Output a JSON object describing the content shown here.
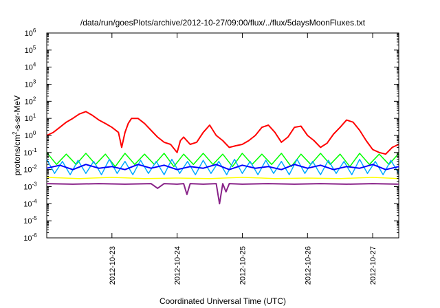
{
  "chart_data": {
    "type": "line",
    "title": "/data/run/goesPlots/archive/2012-10-27/09:00/flux/../flux/5daysMoonFluxes.txt",
    "xlabel": "Coordinated Universal Time (UTC)",
    "ylabel_parts": {
      "base": "protons/cm",
      "sup": "2",
      "rest": "-s-sr-MeV"
    },
    "y_scale": "log",
    "ylim_exp": [
      -6,
      6
    ],
    "y_tick_base": "10",
    "y_tick_exponents": [
      "6",
      "5",
      "4",
      "3",
      "2",
      "1",
      "0",
      "-1",
      "-2",
      "-3",
      "-4",
      "-5",
      "-6"
    ],
    "x_range_days": [
      0,
      5.4
    ],
    "x_ticks": [
      {
        "label": "2012-10-23",
        "day": 1.0
      },
      {
        "label": "2012-10-24",
        "day": 2.0
      },
      {
        "label": "2012-10-25",
        "day": 3.0
      },
      {
        "label": "2012-10-26",
        "day": 4.0
      },
      {
        "label": "2012-10-27",
        "day": 5.0
      }
    ],
    "grid": false,
    "series": [
      {
        "color": "#ff0000",
        "width": 2,
        "x": [
          0.0,
          0.1,
          0.2,
          0.3,
          0.4,
          0.5,
          0.6,
          0.7,
          0.8,
          0.9,
          1.0,
          1.1,
          1.15,
          1.2,
          1.25,
          1.3,
          1.4,
          1.5,
          1.6,
          1.7,
          1.8,
          1.9,
          2.0,
          2.05,
          2.1,
          2.2,
          2.3,
          2.4,
          2.5,
          2.6,
          2.7,
          2.8,
          2.9,
          3.0,
          3.1,
          3.2,
          3.3,
          3.4,
          3.5,
          3.6,
          3.7,
          3.8,
          3.9,
          4.0,
          4.1,
          4.2,
          4.3,
          4.4,
          4.5,
          4.6,
          4.7,
          4.8,
          4.9,
          5.0,
          5.1,
          5.2,
          5.3,
          5.4
        ],
        "y": [
          1.0,
          1.5,
          3,
          6,
          10,
          18,
          25,
          15,
          8,
          5,
          3,
          1.5,
          0.2,
          1.5,
          5,
          10,
          10,
          5,
          2,
          0.8,
          0.4,
          0.3,
          0.1,
          0.5,
          0.8,
          0.3,
          0.4,
          1.5,
          4,
          1.0,
          0.5,
          0.2,
          0.25,
          0.3,
          0.5,
          1,
          3,
          4,
          1.5,
          0.4,
          0.8,
          3,
          3.5,
          1.0,
          0.5,
          0.2,
          0.35,
          1.2,
          3,
          8,
          6,
          2,
          0.5,
          0.15,
          0.1,
          0.08,
          0.2,
          0.3
        ]
      },
      {
        "color": "#00ff00",
        "width": 1.5,
        "x": [
          0.0,
          0.15,
          0.3,
          0.45,
          0.6,
          0.75,
          0.9,
          1.05,
          1.2,
          1.35,
          1.5,
          1.65,
          1.8,
          1.95,
          2.1,
          2.25,
          2.4,
          2.55,
          2.7,
          2.85,
          3.0,
          3.15,
          3.3,
          3.45,
          3.6,
          3.75,
          3.9,
          4.05,
          4.2,
          4.35,
          4.5,
          4.65,
          4.8,
          4.95,
          5.1,
          5.25,
          5.4
        ],
        "y": [
          0.1,
          0.02,
          0.08,
          0.02,
          0.09,
          0.02,
          0.08,
          0.015,
          0.09,
          0.02,
          0.08,
          0.02,
          0.09,
          0.015,
          0.08,
          0.02,
          0.09,
          0.02,
          0.08,
          0.015,
          0.09,
          0.02,
          0.08,
          0.02,
          0.09,
          0.015,
          0.08,
          0.02,
          0.09,
          0.02,
          0.08,
          0.015,
          0.09,
          0.02,
          0.08,
          0.02,
          0.09
        ]
      },
      {
        "color": "#00aaff",
        "width": 1.5,
        "x": [
          0.0,
          0.12,
          0.24,
          0.36,
          0.48,
          0.6,
          0.72,
          0.84,
          0.96,
          1.08,
          1.2,
          1.32,
          1.44,
          1.56,
          1.68,
          1.8,
          1.92,
          2.04,
          2.16,
          2.28,
          2.4,
          2.52,
          2.64,
          2.76,
          2.88,
          3.0,
          3.12,
          3.24,
          3.36,
          3.48,
          3.6,
          3.72,
          3.84,
          3.96,
          4.08,
          4.2,
          4.32,
          4.44,
          4.56,
          4.68,
          4.8,
          4.92,
          5.04,
          5.16,
          5.28,
          5.4
        ],
        "y": [
          0.04,
          0.006,
          0.03,
          0.005,
          0.035,
          0.006,
          0.03,
          0.005,
          0.04,
          0.006,
          0.03,
          0.005,
          0.035,
          0.006,
          0.03,
          0.005,
          0.04,
          0.006,
          0.03,
          0.005,
          0.035,
          0.006,
          0.03,
          0.005,
          0.04,
          0.006,
          0.03,
          0.005,
          0.035,
          0.006,
          0.03,
          0.005,
          0.04,
          0.006,
          0.03,
          0.005,
          0.035,
          0.006,
          0.03,
          0.005,
          0.04,
          0.006,
          0.03,
          0.005,
          0.035,
          0.006
        ]
      },
      {
        "color": "#0000ff",
        "width": 2,
        "x": [
          0.0,
          0.2,
          0.4,
          0.6,
          0.8,
          1.0,
          1.2,
          1.4,
          1.6,
          1.8,
          2.0,
          2.2,
          2.4,
          2.6,
          2.8,
          3.0,
          3.2,
          3.4,
          3.6,
          3.8,
          4.0,
          4.2,
          4.4,
          4.6,
          4.8,
          5.0,
          5.2,
          5.4
        ],
        "y": [
          0.012,
          0.018,
          0.01,
          0.02,
          0.012,
          0.015,
          0.01,
          0.02,
          0.012,
          0.018,
          0.01,
          0.015,
          0.012,
          0.02,
          0.01,
          0.018,
          0.012,
          0.015,
          0.01,
          0.02,
          0.012,
          0.018,
          0.01,
          0.015,
          0.012,
          0.02,
          0.01,
          0.015
        ]
      },
      {
        "color": "#ffff00",
        "width": 1.5,
        "x": [
          0.0,
          0.5,
          1.0,
          1.5,
          2.0,
          2.5,
          3.0,
          3.5,
          4.0,
          4.5,
          5.0,
          5.4
        ],
        "y": [
          0.0035,
          0.003,
          0.0035,
          0.003,
          0.0032,
          0.003,
          0.0035,
          0.003,
          0.0032,
          0.003,
          0.0035,
          0.003
        ]
      },
      {
        "color": "#882288",
        "width": 2,
        "x": [
          0.0,
          0.4,
          0.8,
          1.2,
          1.6,
          1.7,
          1.8,
          2.0,
          2.1,
          2.15,
          2.2,
          2.4,
          2.6,
          2.65,
          2.7,
          2.75,
          2.8,
          3.0,
          3.4,
          3.8,
          4.2,
          4.6,
          5.0,
          5.4
        ],
        "y": [
          0.0015,
          0.0014,
          0.0015,
          0.0014,
          0.0015,
          0.0008,
          0.0015,
          0.0014,
          0.0015,
          0.00035,
          0.0015,
          0.0014,
          0.0015,
          0.0001,
          0.0015,
          0.0005,
          0.0015,
          0.0014,
          0.0015,
          0.0014,
          0.0015,
          0.0014,
          0.0015,
          0.0014
        ]
      }
    ]
  }
}
